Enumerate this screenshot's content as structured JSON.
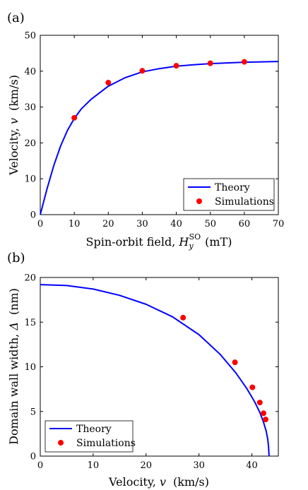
{
  "chart_data": [
    {
      "panel_label": "(a)",
      "type": "line",
      "xlabel": "Spin-orbit field, ",
      "xlabel_var": "H",
      "xlabel_sub": "y",
      "xlabel_sup": "SO",
      "xlabel_unit": "(mT)",
      "ylabel": "Velocity, ",
      "ylabel_var": "v",
      "ylabel_unit": "(km/s)",
      "xlim": [
        0,
        70
      ],
      "ylim": [
        0,
        50
      ],
      "xticks": [
        "0",
        "10",
        "20",
        "30",
        "40",
        "50",
        "60",
        "70"
      ],
      "yticks": [
        "0",
        "10",
        "20",
        "30",
        "40",
        "50"
      ],
      "legend_position": "bottom-right",
      "series": [
        {
          "name": "Theory",
          "kind": "line",
          "color": "#0000ff",
          "x": [
            0,
            2,
            4,
            6,
            8,
            10,
            12,
            15,
            20,
            25,
            30,
            35,
            40,
            45,
            50,
            55,
            60,
            65,
            70
          ],
          "y": [
            0,
            7.2,
            13.8,
            19.2,
            23.5,
            26.8,
            29.4,
            32.2,
            35.8,
            38.2,
            39.8,
            40.7,
            41.4,
            41.8,
            42.1,
            42.3,
            42.5,
            42.6,
            42.7
          ]
        },
        {
          "name": "Simulations",
          "kind": "scatter",
          "color": "#ff0000",
          "x": [
            10,
            20,
            30,
            40,
            50,
            60
          ],
          "y": [
            27.0,
            36.8,
            40.1,
            41.5,
            42.2,
            42.6
          ]
        }
      ]
    },
    {
      "panel_label": "(b)",
      "type": "line",
      "xlabel": "Velocity, ",
      "xlabel_var": "v",
      "xlabel_unit": "(km/s)",
      "ylabel": "Domain wall width, ",
      "ylabel_var": "Δ",
      "ylabel_unit": "(nm)",
      "xlim": [
        0,
        45
      ],
      "ylim": [
        0,
        20
      ],
      "xticks": [
        "0",
        "10",
        "20",
        "30",
        "40"
      ],
      "yticks": [
        "0",
        "5",
        "10",
        "15",
        "20"
      ],
      "legend_position": "bottom-left",
      "series": [
        {
          "name": "Theory",
          "kind": "line",
          "color": "#0000ff",
          "x": [
            0,
            5,
            10,
            15,
            20,
            25,
            30,
            34,
            37,
            39,
            40.5,
            41.5,
            42.2,
            42.7,
            43.0,
            43.15,
            43.25
          ],
          "y": [
            19.2,
            19.1,
            18.7,
            18.0,
            17.0,
            15.6,
            13.6,
            11.4,
            9.3,
            7.6,
            6.1,
            4.9,
            3.8,
            2.8,
            1.9,
            1.1,
            0
          ]
        },
        {
          "name": "Simulations",
          "kind": "scatter",
          "color": "#ff0000",
          "x": [
            27.0,
            36.8,
            40.1,
            41.5,
            42.2,
            42.6
          ],
          "y": [
            15.5,
            10.5,
            7.7,
            6.0,
            4.8,
            4.1
          ]
        }
      ]
    }
  ]
}
